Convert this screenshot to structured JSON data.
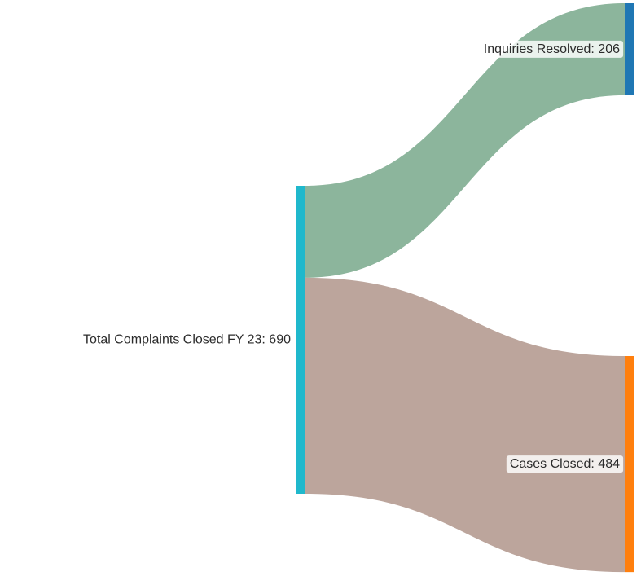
{
  "chart_data": {
    "type": "sankey",
    "title": "",
    "nodes": [
      {
        "id": "total",
        "label": "Total Complaints Closed FY 23: 690",
        "name": "Total Complaints Closed FY 23",
        "value": 690,
        "color": "#1fb8cc"
      },
      {
        "id": "inquiries",
        "label": "Inquiries Resolved: 206",
        "name": "Inquiries Resolved",
        "value": 206,
        "color": "#1f77b4"
      },
      {
        "id": "cases",
        "label": "Cases Closed: 484",
        "name": "Cases Closed",
        "value": 484,
        "color": "#ff7f0e"
      }
    ],
    "links": [
      {
        "source": "total",
        "target": "inquiries",
        "value": 206,
        "color": "#8cb59c"
      },
      {
        "source": "total",
        "target": "cases",
        "value": 484,
        "color": "#bca59c"
      }
    ]
  }
}
